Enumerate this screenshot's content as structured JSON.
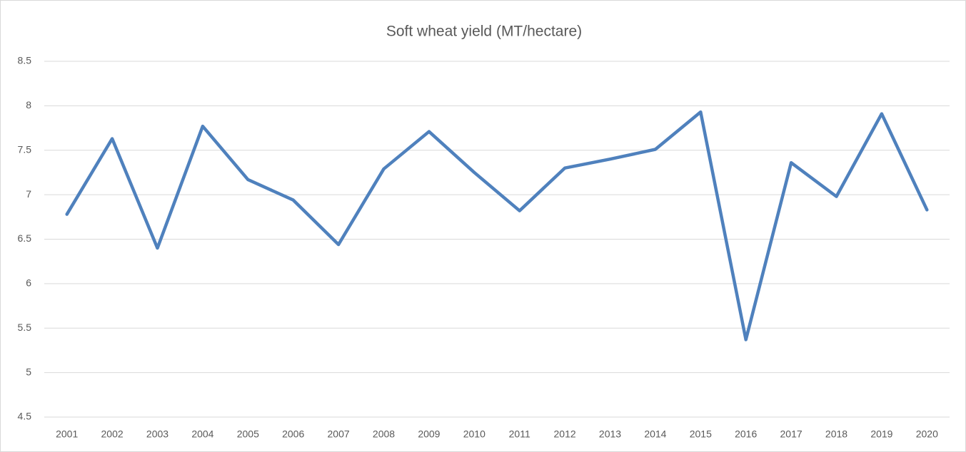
{
  "chart_data": {
    "type": "line",
    "title": "Soft wheat yield (MT/hectare)",
    "categories": [
      "2001",
      "2002",
      "2003",
      "2004",
      "2005",
      "2006",
      "2007",
      "2008",
      "2009",
      "2010",
      "2011",
      "2012",
      "2013",
      "2014",
      "2015",
      "2016",
      "2017",
      "2018",
      "2019",
      "2020"
    ],
    "values": [
      6.78,
      7.63,
      6.4,
      7.77,
      7.17,
      6.94,
      6.44,
      7.29,
      7.71,
      7.25,
      6.82,
      7.3,
      7.4,
      7.51,
      7.93,
      5.37,
      7.36,
      6.98,
      7.91,
      6.83
    ],
    "color": "#4f81bd",
    "ylim": [
      4.5,
      8.5
    ],
    "yticks": [
      4.5,
      5,
      5.5,
      6,
      6.5,
      7,
      7.5,
      8,
      8.5
    ],
    "grid": true
  }
}
